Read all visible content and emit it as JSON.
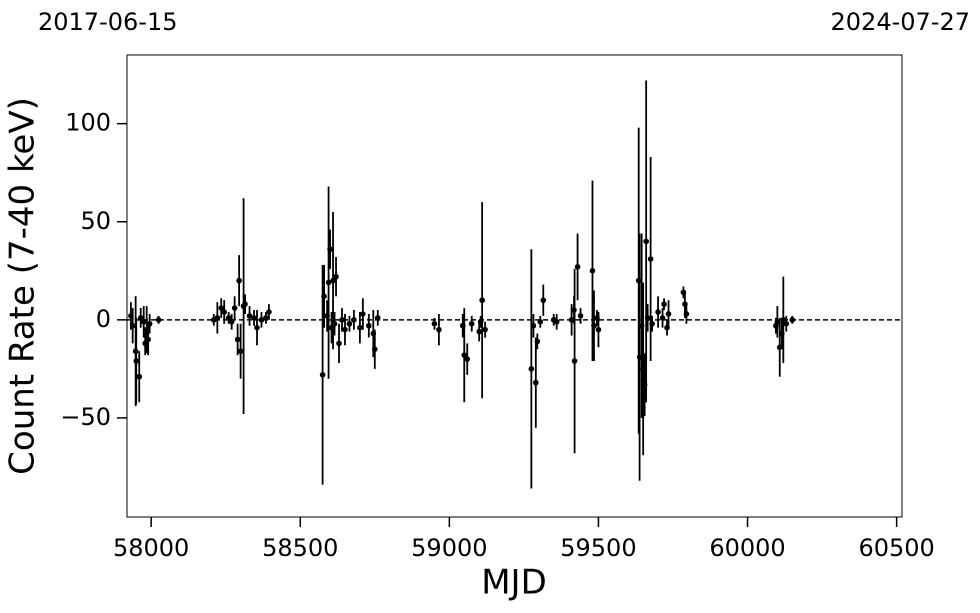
{
  "chart_data": {
    "type": "errorbar",
    "top_labels": [
      "2017-06-15",
      "2024-07-27"
    ],
    "x_label": "MJD",
    "y_label": "Count Rate (7-40 keV)",
    "xlim": [
      57919,
      60518
    ],
    "ylim": [
      -100.5,
      135
    ],
    "xticks": [
      58000,
      58500,
      59000,
      59500,
      60000,
      60500
    ],
    "yticks": [
      {
        "value": -50,
        "label": "−50"
      },
      0,
      50,
      100
    ],
    "hline": 0,
    "color": "#000000",
    "x": [
      57932,
      57938,
      57948,
      57950,
      57960,
      57965,
      57975,
      57980,
      57985,
      57990,
      57995,
      58025,
      58210,
      58222,
      58235,
      58245,
      58260,
      58270,
      58280,
      58290,
      58295,
      58300,
      58310,
      58315,
      58330,
      58345,
      58355,
      58370,
      58385,
      58395,
      58575,
      58580,
      58590,
      58595,
      58600,
      58605,
      58610,
      58615,
      58620,
      58630,
      58640,
      58650,
      58665,
      58680,
      58700,
      58710,
      58730,
      58745,
      58750,
      58760,
      58950,
      58965,
      59045,
      59050,
      59060,
      59075,
      59100,
      59105,
      59110,
      59120,
      59275,
      59282,
      59290,
      59295,
      59305,
      59315,
      59350,
      59360,
      59410,
      59418,
      59420,
      59430,
      59440,
      59480,
      59485,
      59495,
      59500,
      59635,
      59638,
      59645,
      59650,
      59655,
      59660,
      59665,
      59675,
      59680,
      59700,
      59715,
      59720,
      59730,
      59735,
      59785,
      59790,
      59795,
      60095,
      60100,
      60108,
      60115,
      60120,
      60130,
      60150
    ],
    "values": [
      2,
      -3,
      -16,
      -21,
      -29,
      1,
      -1,
      -12,
      -5,
      -10,
      -2,
      0,
      0,
      1,
      6,
      4,
      1,
      -1,
      6,
      -10,
      20,
      -16,
      7,
      8,
      2,
      1,
      -4,
      0,
      1,
      4,
      -28,
      12,
      2,
      19,
      36,
      -4,
      20,
      -2,
      22,
      -12,
      0,
      -5,
      -2,
      0,
      -4,
      3,
      -3,
      -7,
      -15,
      1,
      -2,
      -5,
      -3,
      -18,
      -20,
      -2,
      -6,
      -1,
      10,
      -5,
      -25,
      -3,
      -32,
      -11,
      -1,
      10,
      0,
      -1,
      0,
      5,
      -21,
      27,
      2,
      25,
      -3,
      1,
      -5,
      20,
      -19,
      -3,
      -25,
      -33,
      40,
      1,
      31,
      -2,
      4,
      1,
      8,
      -4,
      3,
      14,
      8,
      3,
      -3,
      -1,
      -14,
      -7,
      0,
      -2,
      0
    ],
    "errors": [
      7,
      9,
      28,
      22,
      13,
      5,
      8,
      6,
      12,
      8,
      5,
      2,
      3,
      8,
      5,
      6,
      3,
      4,
      6,
      8,
      13,
      14,
      55,
      5,
      5,
      4,
      9,
      4,
      3,
      4,
      56,
      16,
      8,
      49,
      10,
      8,
      35,
      6,
      10,
      10,
      6,
      8,
      4,
      5,
      8,
      8,
      6,
      12,
      10,
      4,
      3,
      8,
      6,
      24,
      8,
      4,
      5,
      3,
      50,
      4,
      61,
      6,
      23,
      4,
      3,
      8,
      3,
      4,
      8,
      7,
      47,
      17,
      4,
      46,
      18,
      4,
      9,
      78,
      63,
      47,
      44,
      16,
      82,
      7,
      52,
      4,
      8,
      5,
      3,
      4,
      7,
      3,
      7,
      5,
      4,
      8,
      15,
      8,
      22,
      4,
      2
    ]
  }
}
